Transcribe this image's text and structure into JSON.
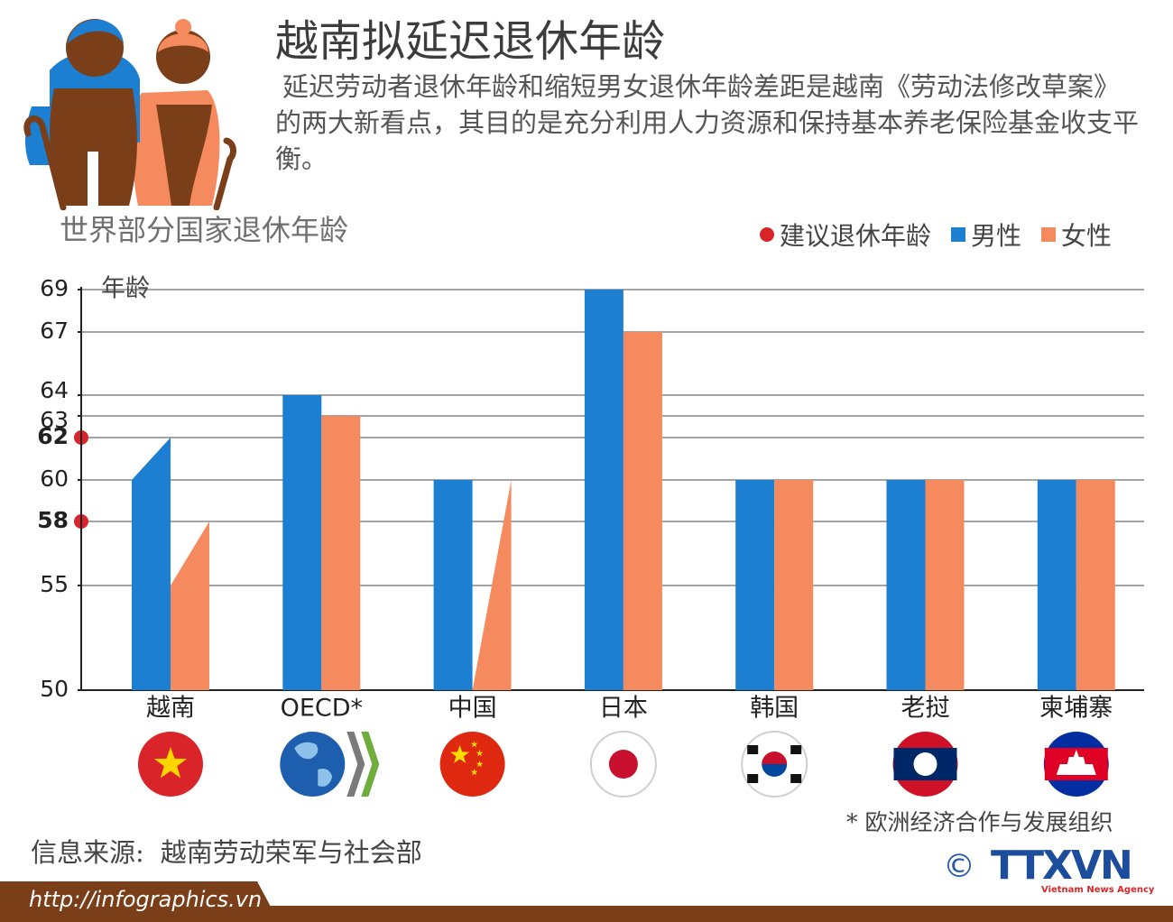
{
  "header": {
    "title": "越南拟延迟退休年龄",
    "intro": "延迟劳动者退休年龄和缩短男女退休年龄差距是越南《劳动法修改草案》的两大新看点，其目的是充分利用人力资源和保持基本养老保险基金收支平衡。"
  },
  "chart_data": {
    "type": "bar",
    "title": "世界部分国家退休年龄",
    "ylabel": "年龄",
    "ylim": [
      50,
      69
    ],
    "yticks": [
      50,
      55,
      58,
      60,
      62,
      63,
      64,
      67,
      69
    ],
    "highlighted_ticks": [
      58,
      62
    ],
    "categories": [
      "越南",
      "OECD*",
      "中国",
      "日本",
      "韩国",
      "老挝",
      "柬埔寨"
    ],
    "series": [
      {
        "name": "男性",
        "color": "#1c7fd1",
        "values": [
          60,
          64,
          60,
          69,
          60,
          60,
          60
        ],
        "proposed": [
          62,
          null,
          null,
          null,
          null,
          null,
          null
        ]
      },
      {
        "name": "女性",
        "color": "#f58a5f",
        "values": [
          55,
          63,
          50,
          67,
          60,
          60,
          60
        ],
        "proposed": [
          58,
          null,
          60,
          null,
          null,
          null,
          null
        ]
      }
    ],
    "legend": [
      "建议退休年龄",
      "男性",
      "女性"
    ],
    "legend_position": "top-right",
    "grid": true
  },
  "colors": {
    "male": "#1c7fd1",
    "female": "#f58a5f",
    "proposed": "#d9252a",
    "brown": "#7a3e18",
    "grid": "#4a4a4a"
  },
  "flags": [
    "vietnam-flag-icon",
    "oecd-globe-icon",
    "china-flag-icon",
    "japan-flag-icon",
    "korea-flag-icon",
    "laos-flag-icon",
    "cambodia-flag-icon"
  ],
  "footnote": "* 欧洲经济合作与发展组织",
  "source": {
    "label": "信息来源:",
    "value": "越南劳动荣军与社会部"
  },
  "footer": {
    "url": "http://infographics.vn",
    "copyright": "©",
    "logo": "TTXVN",
    "logo_sub": "Vietnam News Agency"
  }
}
